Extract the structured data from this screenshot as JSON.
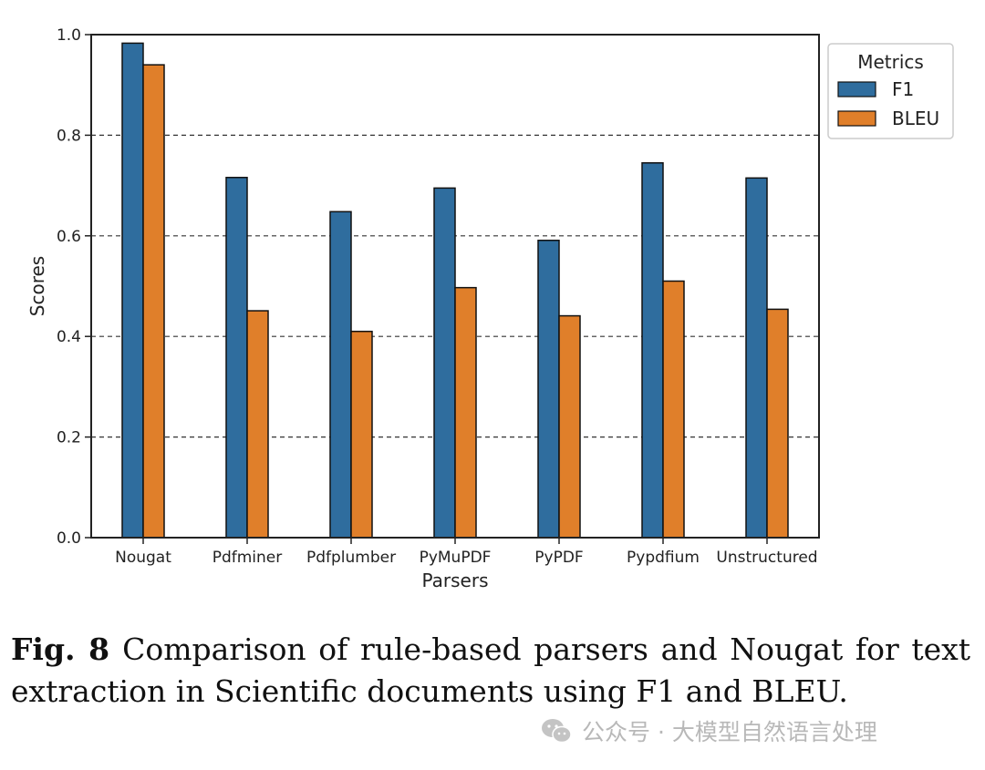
{
  "chart_data": {
    "type": "bar",
    "categories": [
      "Nougat",
      "Pdfminer",
      "Pdfplumber",
      "PyMuPDF",
      "PyPDF",
      "Pypdfium",
      "Unstructured"
    ],
    "series": [
      {
        "name": "F1",
        "color": "#2f6d9e",
        "values": [
          0.983,
          0.716,
          0.648,
          0.695,
          0.591,
          0.745,
          0.715
        ]
      },
      {
        "name": "BLEU",
        "color": "#e07f2a",
        "values": [
          0.94,
          0.451,
          0.41,
          0.497,
          0.441,
          0.51,
          0.454
        ]
      }
    ],
    "xlabel": "Parsers",
    "ylabel": "Scores",
    "ylim": [
      0,
      1.0
    ],
    "yticks": [
      "0.0",
      "0.2",
      "0.4",
      "0.6",
      "0.8",
      "1.0"
    ],
    "grid": "horizontal dashed",
    "legend": {
      "title": "Metrics",
      "placement": "outside-right"
    }
  },
  "caption": {
    "label": "Fig. 8",
    "text": "Comparison of rule-based parsers and Nougat for text extraction in Scientific documents using F1 and BLEU."
  },
  "watermark": {
    "text": "公众号 · 大模型自然语言处理",
    "icon": "wechat-icon"
  }
}
